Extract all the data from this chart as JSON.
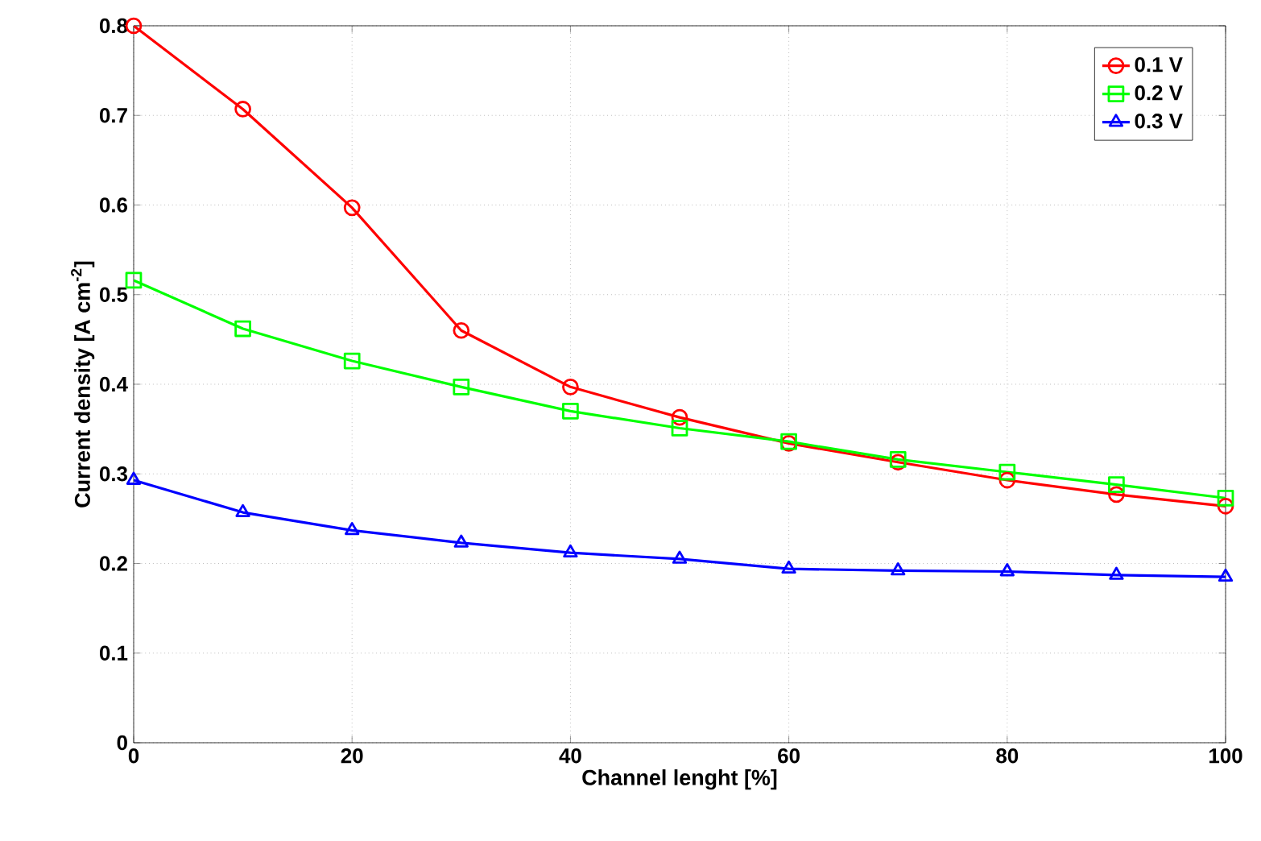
{
  "chart_data": {
    "type": "line",
    "xlabel": "Channel lenght [%]",
    "ylabel": "Current density [A cm$^{-2}$]",
    "x": [
      0,
      10,
      20,
      30,
      40,
      50,
      60,
      70,
      80,
      90,
      100
    ],
    "series": [
      {
        "name": "0.1 V",
        "color": "#ff0000",
        "marker": "circle",
        "values": [
          0.8,
          0.707,
          0.597,
          0.46,
          0.397,
          0.363,
          0.334,
          0.313,
          0.293,
          0.277,
          0.264
        ]
      },
      {
        "name": "0.2 V",
        "color": "#00ff00",
        "marker": "square",
        "values": [
          0.516,
          0.462,
          0.426,
          0.397,
          0.37,
          0.351,
          0.336,
          0.316,
          0.302,
          0.288,
          0.273
        ]
      },
      {
        "name": "0.3 V",
        "color": "#0000ff",
        "marker": "triangle",
        "values": [
          0.293,
          0.257,
          0.237,
          0.223,
          0.212,
          0.205,
          0.194,
          0.192,
          0.191,
          0.187,
          0.185
        ]
      }
    ],
    "xlim": [
      0,
      100
    ],
    "ylim": [
      0,
      0.8
    ],
    "xticks": [
      0,
      20,
      40,
      60,
      80,
      100
    ],
    "yticks": [
      0,
      0.1,
      0.2,
      0.3,
      0.4,
      0.5,
      0.6,
      0.7,
      0.8
    ],
    "grid": true,
    "legend": "top right",
    "line_style": "solid"
  }
}
